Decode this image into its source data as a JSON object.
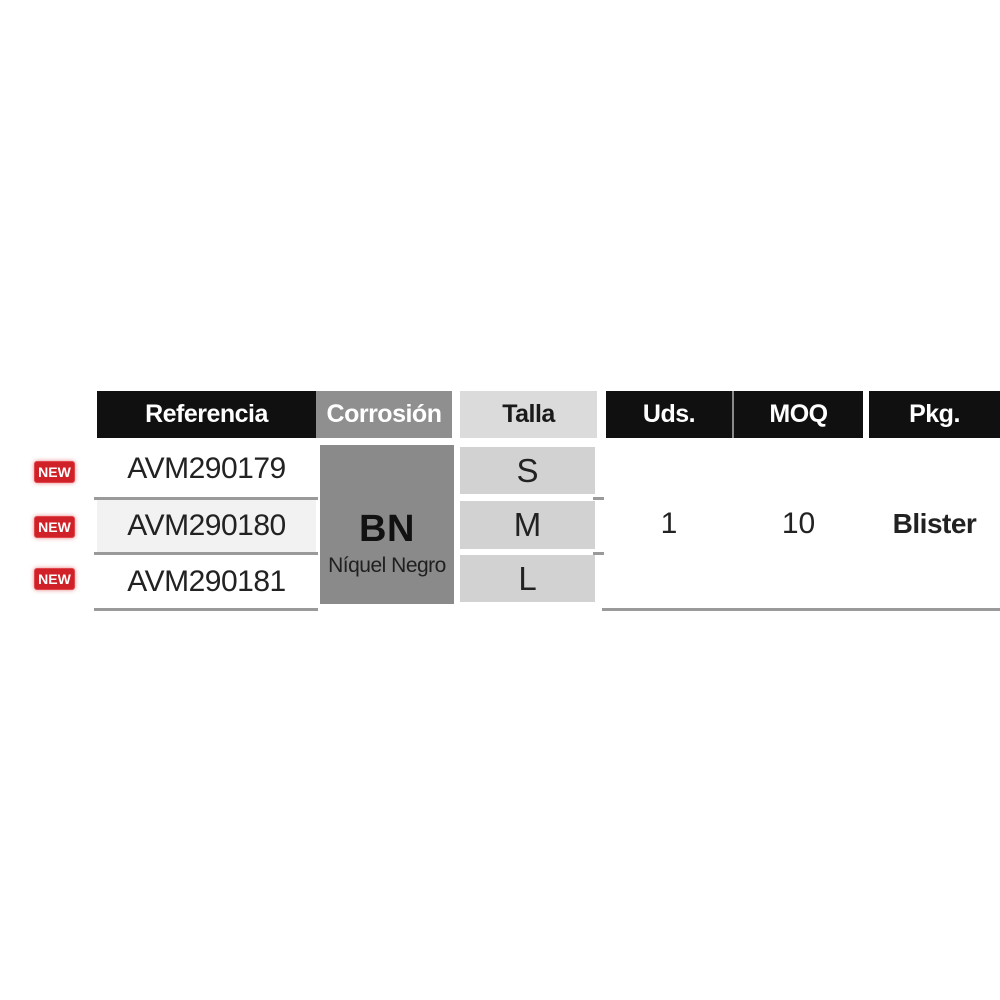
{
  "page": {
    "background": "#ffffff"
  },
  "new_badge": {
    "label": "NEW",
    "background_color": "#cf2127",
    "text_color": "#ffffff"
  },
  "table": {
    "columns": [
      {
        "key": "referencia",
        "label": "Referencia",
        "header_bg": "#101010",
        "header_text_color": "#ffffff"
      },
      {
        "key": "corrosion",
        "label": "Corrosión",
        "header_bg": "#8f8f8f",
        "header_text_color": "#ffffff"
      },
      {
        "key": "talla",
        "label": "Talla",
        "header_bg": "#dbdbdb",
        "header_text_color": "#1a1a1a"
      },
      {
        "key": "uds",
        "label": "Uds.",
        "header_bg": "#101010",
        "header_text_color": "#ffffff"
      },
      {
        "key": "moq",
        "label": "MOQ",
        "header_bg": "#101010",
        "header_text_color": "#ffffff"
      },
      {
        "key": "pkg",
        "label": "Pkg.",
        "header_bg": "#101010",
        "header_text_color": "#ffffff"
      }
    ],
    "rows": [
      {
        "referencia": "AVM290179",
        "talla": "S",
        "is_new": true
      },
      {
        "referencia": "AVM290180",
        "talla": "M",
        "is_new": true
      },
      {
        "referencia": "AVM290181",
        "talla": "L",
        "is_new": true
      }
    ],
    "merged_cells": {
      "corrosion": {
        "code": "BN",
        "name": "Níquel Negro",
        "bg": "#8a8a8a"
      },
      "uds": "1",
      "moq": "10",
      "pkg": "Blister"
    },
    "row_zebra_bg": "#f2f2f2",
    "talla_cell_bg": "#d2d2d2",
    "divider_color": "#9a9a9a"
  }
}
